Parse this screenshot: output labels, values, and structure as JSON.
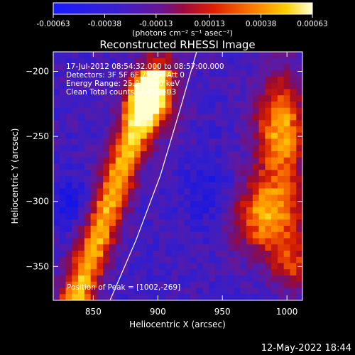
{
  "colorbar": {
    "ticks": [
      "-0.00063",
      "-0.00038",
      "-0.00013",
      "0.00013",
      "0.00038",
      "0.00063"
    ],
    "unit_label": "(photons cm⁻² s⁻¹ asec⁻²)",
    "min": -0.00063,
    "max": 0.00063
  },
  "chart_data": {
    "type": "heatmap",
    "title": "Reconstructed RHESSI Image",
    "xlabel": "Heliocentric X (arcsec)",
    "ylabel": "Heliocentric Y (arcsec)",
    "xlim": [
      819,
      1012
    ],
    "ylim": [
      -376,
      -185
    ],
    "x_ticks": [
      850,
      900,
      950,
      1000
    ],
    "y_ticks": [
      -200,
      -250,
      -300,
      -350
    ],
    "x_tick_labels": [
      "850",
      "900",
      "950",
      "1000"
    ],
    "y_tick_labels": [
      "−200",
      "−250",
      "−300",
      "−350"
    ],
    "annotations": [
      "17-Jul-2012 08:54:32.000 to 08:57:00.000",
      "Detectors: 3F 5F 6F 7F 8F, Att 0",
      "Energy Range: 25.0 - 50.0 keV",
      "Clean     Total counts: 2.45E+03"
    ],
    "peak_label": "Position of Peak = [1002,-269]",
    "peak": [
      1002,
      -269
    ],
    "limb_curve": [
      [
        863,
        -376
      ],
      [
        883,
        -330
      ],
      [
        902,
        -280
      ],
      [
        917,
        -230
      ],
      [
        930,
        -185
      ]
    ]
  },
  "footer": {
    "timestamp": "12-May-2022 18:44"
  }
}
